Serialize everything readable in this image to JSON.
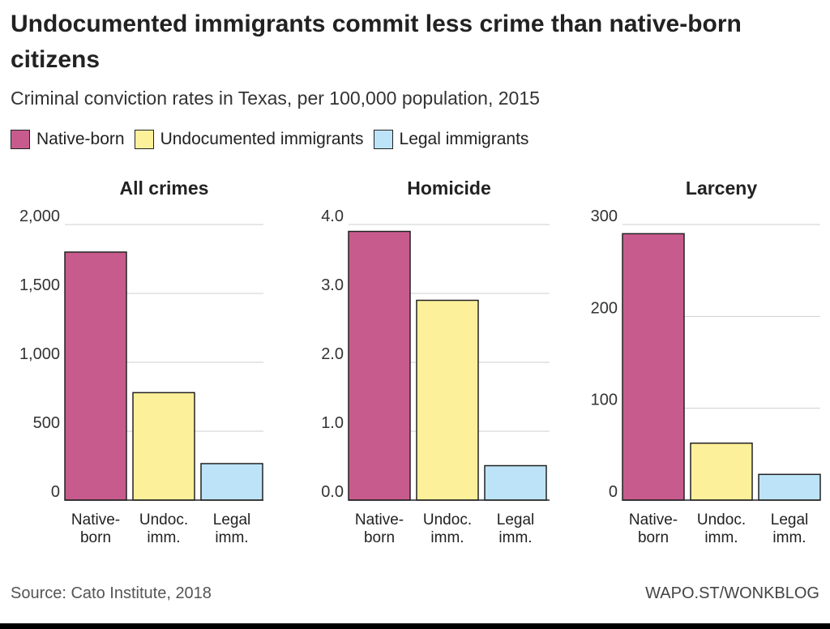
{
  "header": {
    "title": "Undocumented immigrants commit less crime than native-born citizens",
    "subtitle": "Criminal conviction rates in Texas, per 100,000 population, 2015"
  },
  "legend": [
    {
      "label": "Native-born",
      "color": "#c85b8d"
    },
    {
      "label": "Undocumented immigrants",
      "color": "#fdf09a"
    },
    {
      "label": "Legal immigrants",
      "color": "#bde3f8"
    }
  ],
  "footer": {
    "source": "Source: Cato Institute, 2018",
    "credit": "WAPO.ST/WONKBLOG"
  },
  "chart_data": [
    {
      "type": "bar",
      "title": "All crimes",
      "categories": [
        "Native-born",
        "Undoc. imm.",
        "Legal imm."
      ],
      "category_lines": [
        [
          "Native-",
          "born"
        ],
        [
          "Undoc.",
          "imm."
        ],
        [
          "Legal",
          "imm."
        ]
      ],
      "values": [
        1800,
        780,
        265
      ],
      "colors": [
        "#c85b8d",
        "#fdf09a",
        "#bde3f8"
      ],
      "ylim": [
        0,
        2000
      ],
      "yticks": [
        0,
        500,
        1000,
        1500,
        2000
      ],
      "ytick_labels": [
        "0",
        "500",
        "1,000",
        "1,500",
        "2,000"
      ],
      "xlabel": "",
      "ylabel": ""
    },
    {
      "type": "bar",
      "title": "Homicide",
      "categories": [
        "Native-born",
        "Undoc. imm.",
        "Legal imm."
      ],
      "category_lines": [
        [
          "Native-",
          "born"
        ],
        [
          "Undoc.",
          "imm."
        ],
        [
          "Legal",
          "imm."
        ]
      ],
      "values": [
        3.9,
        2.9,
        0.5
      ],
      "colors": [
        "#c85b8d",
        "#fdf09a",
        "#bde3f8"
      ],
      "ylim": [
        0,
        4
      ],
      "yticks": [
        0,
        1,
        2,
        3,
        4
      ],
      "ytick_labels": [
        "0.0",
        "1.0",
        "2.0",
        "3.0",
        "4.0"
      ],
      "xlabel": "",
      "ylabel": ""
    },
    {
      "type": "bar",
      "title": "Larceny",
      "categories": [
        "Native-born",
        "Undoc. imm.",
        "Legal imm."
      ],
      "category_lines": [
        [
          "Native-",
          "born"
        ],
        [
          "Undoc.",
          "imm."
        ],
        [
          "Legal",
          "imm."
        ]
      ],
      "values": [
        290,
        62,
        28
      ],
      "colors": [
        "#c85b8d",
        "#fdf09a",
        "#bde3f8"
      ],
      "ylim": [
        0,
        300
      ],
      "yticks": [
        0,
        100,
        200,
        300
      ],
      "ytick_labels": [
        "0",
        "100",
        "200",
        "300"
      ],
      "xlabel": "",
      "ylabel": ""
    }
  ]
}
